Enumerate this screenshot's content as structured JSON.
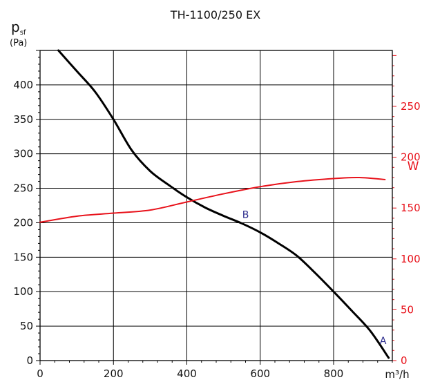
{
  "chart_data": {
    "type": "line",
    "title": "TH-1100/250 EX",
    "xlabel": "m³/h",
    "ylabel_main": "p",
    "ylabel_sub": "sf",
    "ylabel_unit": "(Pa)",
    "y2label": "W",
    "xlim": [
      0,
      960
    ],
    "ylim": [
      0,
      450
    ],
    "y2lim": [
      0,
      305
    ],
    "x_ticks": [
      0,
      200,
      400,
      600,
      800
    ],
    "y_ticks": [
      0,
      50,
      100,
      150,
      200,
      250,
      300,
      350,
      400
    ],
    "y2_ticks": [
      0,
      50,
      100,
      150,
      200,
      250
    ],
    "grid": true,
    "colors": {
      "pressure": "#000000",
      "power": "#e8121b",
      "annotation": "#2b2b8c",
      "grid": "#000000"
    },
    "series": [
      {
        "axis": "left",
        "x": [
          50,
          100,
          150,
          200,
          250,
          300,
          350,
          400,
          450,
          500,
          550,
          600,
          650,
          700,
          750,
          800,
          850,
          900,
          950
        ],
        "y": [
          450,
          420,
          390,
          350,
          305,
          275,
          255,
          237,
          222,
          210,
          199,
          186,
          170,
          152,
          127,
          100,
          72,
          43,
          4
        ]
      },
      {
        "axis": "right",
        "x": [
          0,
          100,
          200,
          300,
          400,
          500,
          600,
          700,
          800,
          870,
          940
        ],
        "y": [
          136,
          142,
          145,
          148,
          156,
          164,
          171,
          176,
          179,
          180,
          178
        ]
      }
    ],
    "annotations": [
      {
        "text": "B",
        "x": 560,
        "y": 207
      },
      {
        "text": "A",
        "x": 935,
        "y": 24
      }
    ]
  }
}
